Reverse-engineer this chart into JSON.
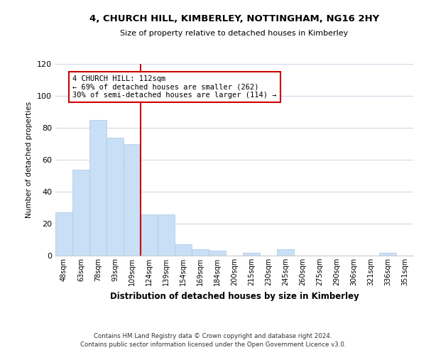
{
  "title": "4, CHURCH HILL, KIMBERLEY, NOTTINGHAM, NG16 2HY",
  "subtitle": "Size of property relative to detached houses in Kimberley",
  "xlabel": "Distribution of detached houses by size in Kimberley",
  "ylabel": "Number of detached properties",
  "bar_labels": [
    "48sqm",
    "63sqm",
    "78sqm",
    "93sqm",
    "109sqm",
    "124sqm",
    "139sqm",
    "154sqm",
    "169sqm",
    "184sqm",
    "200sqm",
    "215sqm",
    "230sqm",
    "245sqm",
    "260sqm",
    "275sqm",
    "290sqm",
    "306sqm",
    "321sqm",
    "336sqm",
    "351sqm"
  ],
  "bar_values": [
    27,
    54,
    85,
    74,
    70,
    26,
    26,
    7,
    4,
    3,
    0,
    2,
    0,
    4,
    0,
    0,
    0,
    0,
    0,
    2,
    0
  ],
  "bar_color": "#c8dff5",
  "bar_edge_color": "#a8c8e8",
  "vline_index": 4,
  "vline_color": "#cc0000",
  "ylim": [
    0,
    120
  ],
  "yticks": [
    0,
    20,
    40,
    60,
    80,
    100,
    120
  ],
  "annotation_line1": "4 CHURCH HILL: 112sqm",
  "annotation_line2": "← 69% of detached houses are smaller (262)",
  "annotation_line3": "30% of semi-detached houses are larger (114) →",
  "annotation_box_color": "#ffffff",
  "annotation_box_edge": "#cc0000",
  "footer_line1": "Contains HM Land Registry data © Crown copyright and database right 2024.",
  "footer_line2": "Contains public sector information licensed under the Open Government Licence v3.0.",
  "background_color": "#ffffff",
  "grid_color": "#d0d8e8"
}
